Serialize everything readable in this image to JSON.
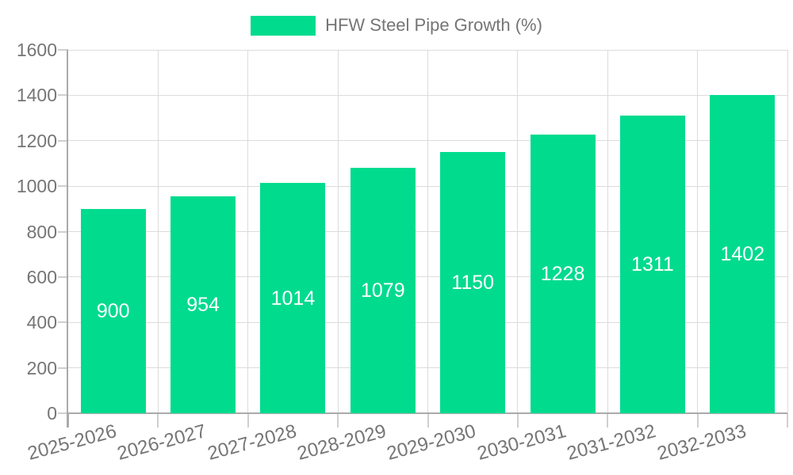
{
  "chart_data": {
    "type": "bar",
    "title": "",
    "legend": [
      "HFW Steel Pipe Growth (%)"
    ],
    "legend_position": "top",
    "categories": [
      "2025-2026",
      "2026-2027",
      "2027-2028",
      "2028-2029",
      "2029-2030",
      "2030-2031",
      "2031-2032",
      "2032-2033"
    ],
    "values": [
      900,
      954,
      1014,
      1079,
      1150,
      1228,
      1311,
      1402
    ],
    "value_labels": [
      "900",
      "954",
      "1014",
      "1079",
      "1150",
      "1228",
      "1311",
      "1402"
    ],
    "xlabel": "",
    "ylabel": "",
    "ylim": [
      0,
      1600
    ],
    "ytick_step": 200,
    "yticks": [
      0,
      200,
      400,
      600,
      800,
      1000,
      1200,
      1400,
      1600
    ],
    "grid": true,
    "colors": {
      "bar": "#00db8e",
      "grid": "#dcdcdc",
      "axis": "#aaaaaa",
      "tick": "#cfcfcf",
      "text": "#757575",
      "value_label": "#ffffff",
      "background": "#ffffff"
    }
  }
}
